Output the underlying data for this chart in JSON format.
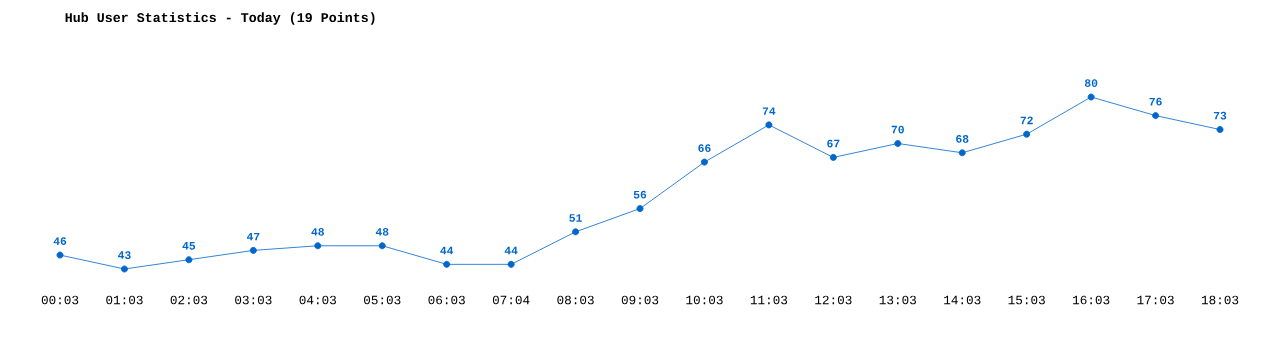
{
  "chart_data": {
    "type": "line",
    "title": "Hub User Statistics - Today (19 Points)",
    "categories": [
      "00:03",
      "01:03",
      "02:03",
      "03:03",
      "04:03",
      "05:03",
      "06:03",
      "07:04",
      "08:03",
      "09:03",
      "10:03",
      "11:03",
      "12:03",
      "13:03",
      "14:03",
      "15:03",
      "16:03",
      "17:03",
      "18:03"
    ],
    "series": [
      {
        "color": "#0066cc",
        "values": [
          46,
          43,
          45,
          47,
          48,
          48,
          44,
          44,
          51,
          56,
          66,
          74,
          67,
          70,
          68,
          72,
          80,
          76,
          73
        ]
      }
    ],
    "data_labels": true,
    "marker": "circle",
    "line_style": "solid",
    "grid": false
  }
}
